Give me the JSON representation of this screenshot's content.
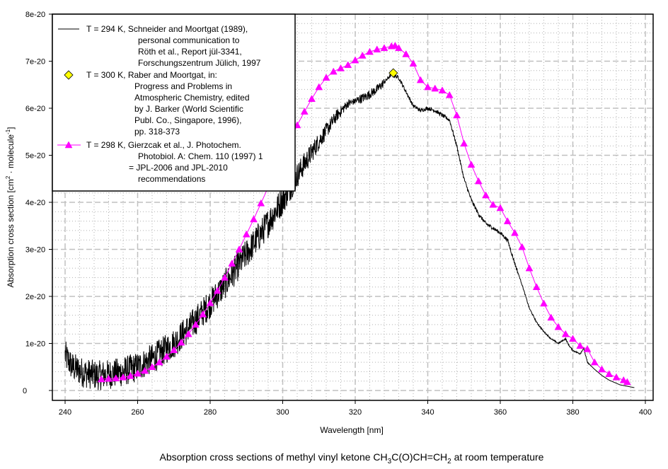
{
  "chart_data": {
    "type": "line",
    "title": "",
    "caption": {
      "prefix": "Absorption cross sections of methyl vinyl ketone CH",
      "sub1": "3",
      "mid": "C(O)CH=CH",
      "sub2": "2",
      "suffix": " at room temperature"
    },
    "xlabel": "Wavelength [nm]",
    "ylabel": {
      "prefix": "Absorption cross section [cm",
      "sup1": "2",
      "mid": " · molecule",
      "sup2": "-1",
      "suffix": "]"
    },
    "xlim": [
      235,
      400
    ],
    "ylim": [
      -1e-21,
      8e-20
    ],
    "x_ticks": [
      240,
      260,
      280,
      300,
      320,
      340,
      360,
      380,
      400
    ],
    "x_tick_labels": [
      "240",
      "260",
      "280",
      "300",
      "320",
      "340",
      "360",
      "380",
      "400"
    ],
    "y_ticks": [
      0,
      1e-20,
      2e-20,
      3e-20,
      4e-20,
      5e-20,
      6e-20,
      7e-20,
      8e-20
    ],
    "y_tick_labels": [
      "0",
      "1e-20",
      "2e-20",
      "3e-20",
      "4e-20",
      "5e-20",
      "6e-20",
      "7e-20",
      "8e-20"
    ],
    "grid": true,
    "legend_placement": "top-left",
    "series": [
      {
        "name": "Schneider and Moortgat (1989)",
        "style": "line",
        "noisy": true,
        "color": "#000000",
        "legend_lines": [
          "T = 294 K, Schneider and Moortgat (1989),",
          "personal communication to",
          "Röth et al., Report jül-3341,",
          "Forschungszentrum Jülich, 1997"
        ],
        "x": [
          240,
          242,
          245,
          248,
          250,
          255,
          260,
          265,
          270,
          275,
          280,
          285,
          290,
          295,
          300,
          305,
          310,
          315,
          318,
          320,
          323,
          326,
          328,
          330,
          332,
          334,
          336,
          338,
          340,
          342,
          344,
          346,
          348,
          350,
          352,
          354,
          356,
          358,
          360,
          362,
          364,
          366,
          368,
          370,
          372,
          374,
          376,
          378,
          379,
          380,
          382,
          383,
          384,
          386,
          388,
          390,
          393,
          397
        ],
        "y": [
          7.5e-21,
          5e-21,
          3.8e-21,
          3.3e-21,
          3.2e-21,
          3.8e-21,
          5e-21,
          7.2e-21,
          1e-20,
          1.4e-20,
          1.85e-20,
          2.35e-20,
          2.9e-20,
          3.45e-20,
          4.05e-20,
          4.7e-20,
          5.3e-20,
          5.85e-20,
          6.1e-20,
          6.15e-20,
          6.25e-20,
          6.4e-20,
          6.55e-20,
          6.72e-20,
          6.65e-20,
          6.35e-20,
          6.05e-20,
          5.95e-20,
          6e-20,
          5.95e-20,
          5.85e-20,
          5.75e-20,
          5.2e-20,
          4.5e-20,
          4.05e-20,
          3.75e-20,
          3.55e-20,
          3.45e-20,
          3.35e-20,
          3.2e-20,
          2.7e-20,
          2.25e-20,
          1.75e-20,
          1.45e-20,
          1.25e-20,
          1.1e-20,
          1e-20,
          1.1e-20,
          9.5e-21,
          8.5e-21,
          7.8e-21,
          9e-21,
          6e-21,
          4.5e-21,
          3.2e-21,
          2.2e-21,
          1.2e-21,
          6e-22
        ]
      },
      {
        "name": "Raber and Moortgat",
        "style": "marker",
        "marker": "diamond",
        "color": "#FFFF00",
        "legend_lines": [
          "T = 300 K, Raber and Moortgat, in:",
          "Progress and Problems in",
          "Atmospheric Chemistry, edited",
          "by J. Barker  (World Scientific",
          "Publ. Co., Singapore, 1996),",
          "pp. 318-373"
        ],
        "x": [
          330.5
        ],
        "y": [
          6.75e-20
        ]
      },
      {
        "name": "Gierzcak et al.",
        "style": "line+marker",
        "marker": "triangle",
        "color": "#FF00FF",
        "legend_lines": [
          "T = 298 K, Gierzcak et al., J. Photochem.",
          "Photobiol. A: Chem. 110 (1997) 1",
          "= JPL-2006 and JPL-2010",
          "recommendations"
        ],
        "x": [
          250,
          252,
          254,
          256,
          258,
          260,
          262,
          264,
          266,
          268,
          270,
          272,
          274,
          276,
          278,
          280,
          282,
          284,
          286,
          288,
          290,
          292,
          294,
          296,
          298,
          300,
          302,
          304,
          306,
          308,
          310,
          312,
          314,
          316,
          318,
          320,
          322,
          324,
          326,
          328,
          330,
          331,
          332,
          334,
          336,
          338,
          340,
          342,
          344,
          346,
          348,
          350,
          352,
          354,
          356,
          358,
          360,
          362,
          364,
          366,
          368,
          370,
          372,
          374,
          376,
          378,
          380,
          382,
          384,
          386,
          388,
          390,
          392,
          394,
          395
        ],
        "y": [
          2.4e-21,
          2.5e-21,
          2.6e-21,
          2.8e-21,
          3.1e-21,
          3.6e-21,
          4.2e-21,
          5e-21,
          6e-21,
          7.2e-21,
          8.6e-21,
          1.02e-20,
          1.2e-20,
          1.4e-20,
          1.62e-20,
          1.86e-20,
          2.12e-20,
          2.4e-20,
          2.7e-20,
          3e-20,
          3.32e-20,
          3.64e-20,
          3.98e-20,
          4.32e-20,
          4.66e-20,
          5e-20,
          5.33e-20,
          5.64e-20,
          5.93e-20,
          6.2e-20,
          6.45e-20,
          6.65e-20,
          6.78e-20,
          6.85e-20,
          6.92e-20,
          7.02e-20,
          7.12e-20,
          7.2e-20,
          7.25e-20,
          7.28e-20,
          7.32e-20,
          7.33e-20,
          7.28e-20,
          7.15e-20,
          6.95e-20,
          6.6e-20,
          6.45e-20,
          6.42e-20,
          6.38e-20,
          6.28e-20,
          5.85e-20,
          5.25e-20,
          4.8e-20,
          4.45e-20,
          4.15e-20,
          3.95e-20,
          3.88e-20,
          3.6e-20,
          3.35e-20,
          3.05e-20,
          2.6e-20,
          2.2e-20,
          1.85e-20,
          1.55e-20,
          1.35e-20,
          1.2e-20,
          1.1e-20,
          9.5e-21,
          8.8e-21,
          6e-21,
          4.5e-21,
          3.5e-21,
          2.8e-21,
          2.2e-21,
          1.8e-21
        ]
      }
    ]
  }
}
